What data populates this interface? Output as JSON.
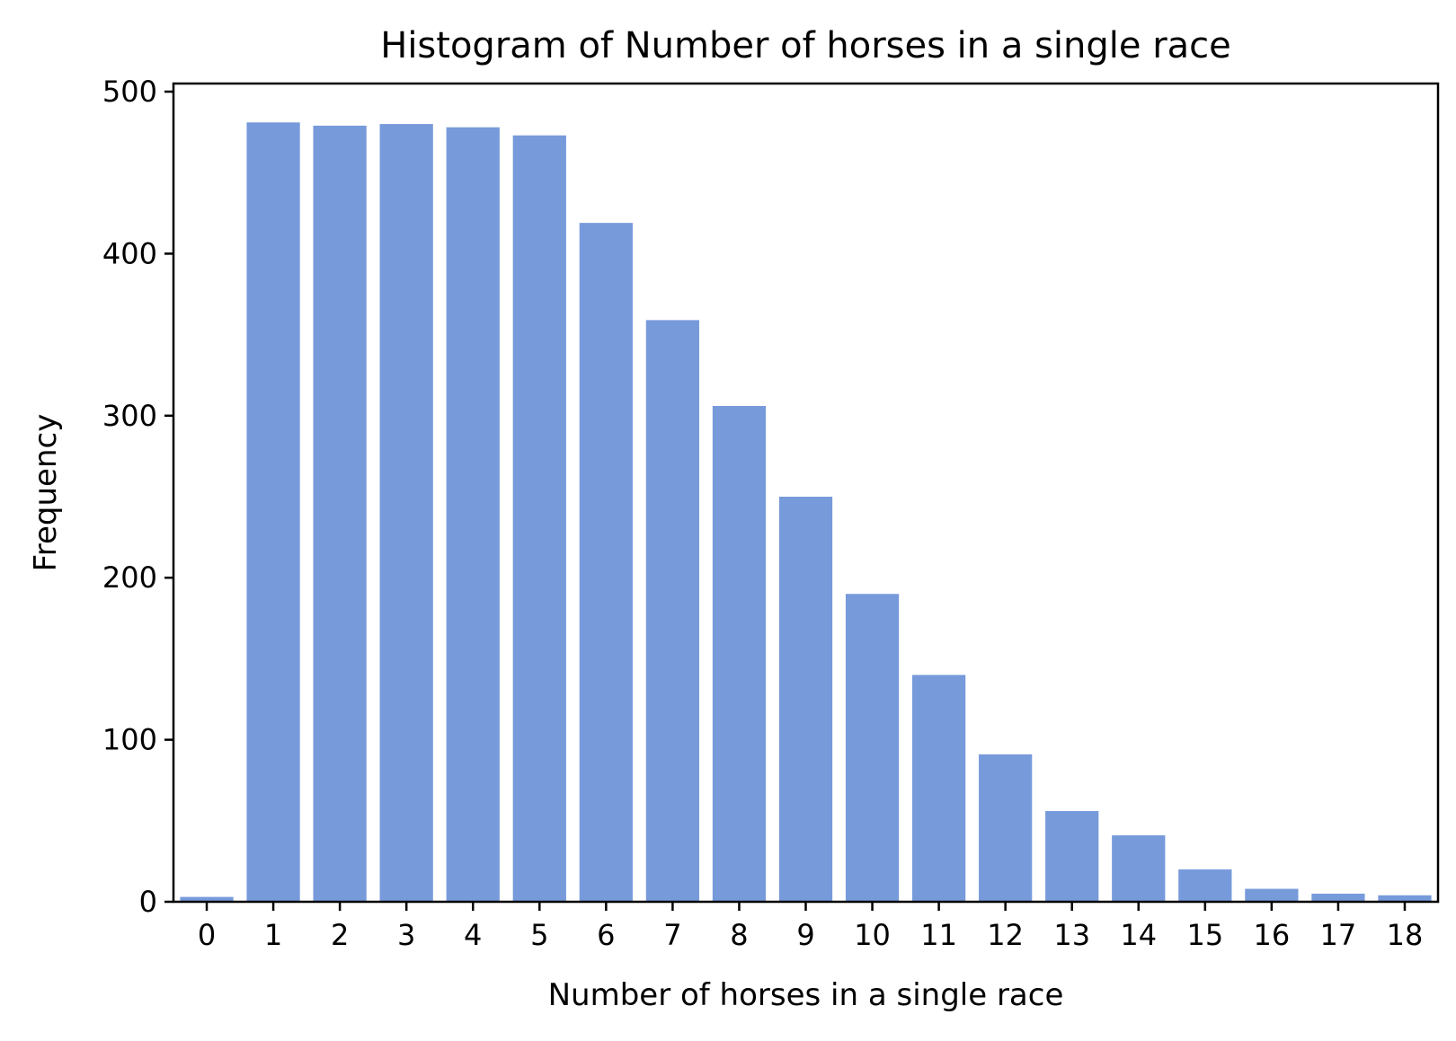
{
  "colors": {
    "bar": "#779ADB",
    "axis": "#000000",
    "background": "#ffffff"
  },
  "chart_data": {
    "type": "bar",
    "title": "Histogram of Number of horses in a single race",
    "xlabel": "Number of horses in a single race",
    "ylabel": "Frequency",
    "categories": [
      "0",
      "1",
      "2",
      "3",
      "4",
      "5",
      "6",
      "7",
      "8",
      "9",
      "10",
      "11",
      "12",
      "13",
      "14",
      "15",
      "16",
      "17",
      "18"
    ],
    "values": [
      3,
      481,
      479,
      480,
      478,
      473,
      419,
      359,
      306,
      250,
      190,
      140,
      91,
      56,
      41,
      20,
      8,
      5,
      4
    ],
    "ylim": [
      0,
      505
    ],
    "yticks": [
      0,
      100,
      200,
      300,
      400,
      500
    ],
    "grid": false,
    "legend": "none"
  }
}
